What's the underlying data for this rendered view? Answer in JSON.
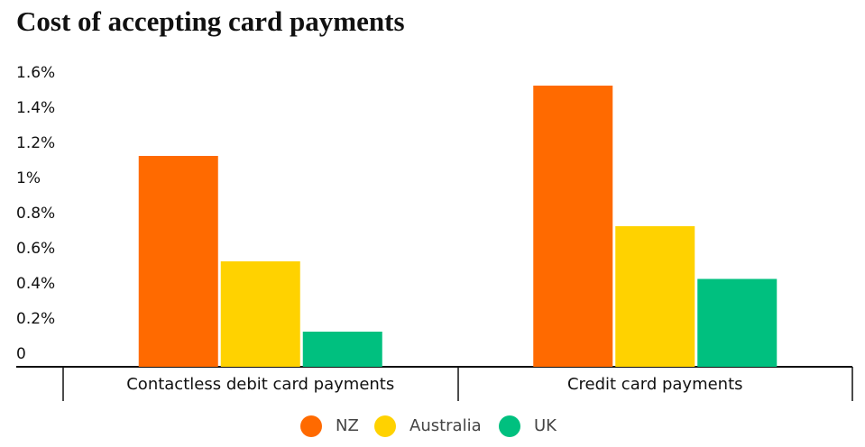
{
  "chart_data": {
    "type": "bar",
    "title": "Cost of accepting card payments",
    "categories": [
      "Contactless debit card payments",
      "Credit card payments"
    ],
    "series": [
      {
        "name": "NZ",
        "color": "#ff6a00",
        "values": [
          1.2,
          1.6
        ]
      },
      {
        "name": "Australia",
        "color": "#ffd200",
        "values": [
          0.6,
          0.8
        ]
      },
      {
        "name": "UK",
        "color": "#00c07f",
        "values": [
          0.2,
          0.5
        ]
      }
    ],
    "ylim": [
      0,
      1.6
    ],
    "yticks": [
      0,
      {
        "value": 0.2,
        "label": "0.2%"
      },
      {
        "value": 0.4,
        "label": "0.4%"
      },
      {
        "value": 0.6,
        "label": "0.6%"
      },
      {
        "value": 0.8,
        "label": "0.8%"
      },
      {
        "value": 1,
        "label": "1%"
      },
      {
        "value": 1.2,
        "label": "1.2%"
      },
      {
        "value": 1.4,
        "label": "1.4%"
      },
      {
        "value": 1.6,
        "label": "1.6%"
      }
    ],
    "grid": false
  }
}
